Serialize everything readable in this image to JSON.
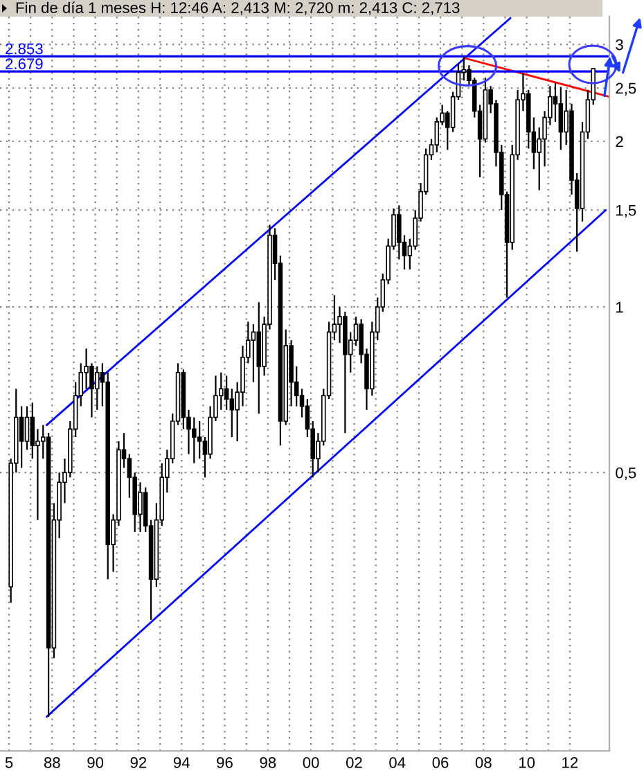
{
  "chart_data": {
    "type": "candlestick",
    "title": "Fin de día 1 meses H: 12:46 A: 2,413 M: 2,720 m: 2,413 C: 2,713",
    "x": [
      "1986-02",
      "1986-05",
      "1986-08",
      "1986-11",
      "1987-02",
      "1987-05",
      "1987-08",
      "1987-11",
      "1988-02",
      "1988-05",
      "1988-08",
      "1988-11",
      "1989-02",
      "1989-05",
      "1989-08",
      "1989-11",
      "1990-02",
      "1990-05",
      "1990-08",
      "1990-11",
      "1991-02",
      "1991-05",
      "1991-08",
      "1991-11",
      "1992-02",
      "1992-05",
      "1992-08",
      "1992-11",
      "1993-02",
      "1993-05",
      "1993-08",
      "1993-11",
      "1994-02",
      "1994-05",
      "1994-08",
      "1994-11",
      "1995-02",
      "1995-05",
      "1995-08",
      "1995-11",
      "1996-02",
      "1996-05",
      "1996-08",
      "1996-11",
      "1997-02",
      "1997-05",
      "1997-08",
      "1997-11",
      "1998-02",
      "1998-05",
      "1998-08",
      "1998-11",
      "1999-02",
      "1999-05",
      "1999-08",
      "1999-11",
      "2000-02",
      "2000-05",
      "2000-08",
      "2000-11",
      "2001-02",
      "2001-05",
      "2001-08",
      "2001-11",
      "2002-02",
      "2002-05",
      "2002-08",
      "2002-11",
      "2003-02",
      "2003-05",
      "2003-08",
      "2003-11",
      "2004-02",
      "2004-05",
      "2004-08",
      "2004-11",
      "2005-02",
      "2005-05",
      "2005-08",
      "2005-11",
      "2006-02",
      "2006-05",
      "2006-08",
      "2006-11",
      "2007-02",
      "2007-05",
      "2007-08",
      "2007-11",
      "2008-02",
      "2008-05",
      "2008-08",
      "2008-11",
      "2009-02",
      "2009-05",
      "2009-08",
      "2009-11",
      "2010-02",
      "2010-05",
      "2010-08",
      "2010-11",
      "2011-02",
      "2011-05",
      "2011-08",
      "2011-11",
      "2012-02",
      "2012-05",
      "2012-08",
      "2012-11",
      "2013-02"
    ],
    "ohlc": [
      [
        0.31,
        0.53,
        0.29,
        0.52
      ],
      [
        0.52,
        0.71,
        0.5,
        0.63
      ],
      [
        0.63,
        0.66,
        0.51,
        0.57
      ],
      [
        0.57,
        0.66,
        0.55,
        0.63
      ],
      [
        0.63,
        0.67,
        0.53,
        0.56
      ],
      [
        0.56,
        0.6,
        0.41,
        0.57
      ],
      [
        0.57,
        0.61,
        0.53,
        0.58
      ],
      [
        0.58,
        0.59,
        0.18,
        0.24
      ],
      [
        0.24,
        0.44,
        0.23,
        0.41
      ],
      [
        0.41,
        0.5,
        0.38,
        0.48
      ],
      [
        0.48,
        0.53,
        0.44,
        0.5
      ],
      [
        0.5,
        0.62,
        0.49,
        0.6
      ],
      [
        0.6,
        0.73,
        0.58,
        0.69
      ],
      [
        0.69,
        0.79,
        0.66,
        0.76
      ],
      [
        0.76,
        0.84,
        0.71,
        0.78
      ],
      [
        0.78,
        0.79,
        0.63,
        0.71
      ],
      [
        0.71,
        0.78,
        0.65,
        0.76
      ],
      [
        0.76,
        0.79,
        0.66,
        0.73
      ],
      [
        0.73,
        0.76,
        0.32,
        0.37
      ],
      [
        0.37,
        0.42,
        0.33,
        0.41
      ],
      [
        0.41,
        0.57,
        0.4,
        0.55
      ],
      [
        0.55,
        0.59,
        0.51,
        0.53
      ],
      [
        0.53,
        0.54,
        0.45,
        0.49
      ],
      [
        0.49,
        0.5,
        0.39,
        0.42
      ],
      [
        0.42,
        0.48,
        0.39,
        0.46
      ],
      [
        0.46,
        0.47,
        0.39,
        0.4
      ],
      [
        0.4,
        0.41,
        0.27,
        0.32
      ],
      [
        0.32,
        0.44,
        0.31,
        0.41
      ],
      [
        0.41,
        0.52,
        0.4,
        0.49
      ],
      [
        0.49,
        0.55,
        0.46,
        0.53
      ],
      [
        0.53,
        0.64,
        0.52,
        0.62
      ],
      [
        0.62,
        0.79,
        0.61,
        0.76
      ],
      [
        0.76,
        0.77,
        0.6,
        0.63
      ],
      [
        0.63,
        0.65,
        0.54,
        0.6
      ],
      [
        0.6,
        0.63,
        0.52,
        0.58
      ],
      [
        0.58,
        0.62,
        0.53,
        0.57
      ],
      [
        0.57,
        0.58,
        0.49,
        0.54
      ],
      [
        0.54,
        0.66,
        0.53,
        0.63
      ],
      [
        0.63,
        0.75,
        0.62,
        0.69
      ],
      [
        0.69,
        0.76,
        0.65,
        0.71
      ],
      [
        0.71,
        0.75,
        0.65,
        0.68
      ],
      [
        0.68,
        0.71,
        0.58,
        0.65
      ],
      [
        0.65,
        0.73,
        0.57,
        0.7
      ],
      [
        0.7,
        0.85,
        0.66,
        0.81
      ],
      [
        0.81,
        0.94,
        0.79,
        0.87
      ],
      [
        0.87,
        0.93,
        0.73,
        0.9
      ],
      [
        0.9,
        1.02,
        0.64,
        0.78
      ],
      [
        0.78,
        0.96,
        0.75,
        0.93
      ],
      [
        0.93,
        1.41,
        0.91,
        1.35
      ],
      [
        1.35,
        1.39,
        1.12,
        1.2
      ],
      [
        1.2,
        1.24,
        0.56,
        0.62
      ],
      [
        0.62,
        0.91,
        0.61,
        0.85
      ],
      [
        0.85,
        0.87,
        0.66,
        0.73
      ],
      [
        0.73,
        0.78,
        0.66,
        0.69
      ],
      [
        0.69,
        0.71,
        0.63,
        0.66
      ],
      [
        0.66,
        0.68,
        0.58,
        0.6
      ],
      [
        0.6,
        0.62,
        0.49,
        0.53
      ],
      [
        0.53,
        0.59,
        0.5,
        0.57
      ],
      [
        0.57,
        0.71,
        0.56,
        0.69
      ],
      [
        0.69,
        0.94,
        0.68,
        0.9
      ],
      [
        0.9,
        1.05,
        0.87,
        0.93
      ],
      [
        0.93,
        1.0,
        0.86,
        0.96
      ],
      [
        0.96,
        0.98,
        0.59,
        0.82
      ],
      [
        0.82,
        0.9,
        0.76,
        0.87
      ],
      [
        0.87,
        0.96,
        0.85,
        0.93
      ],
      [
        0.93,
        0.95,
        0.79,
        0.82
      ],
      [
        0.82,
        0.84,
        0.65,
        0.71
      ],
      [
        0.71,
        0.94,
        0.69,
        0.9
      ],
      [
        0.9,
        1.04,
        0.87,
        1.0
      ],
      [
        1.0,
        1.15,
        0.98,
        1.12
      ],
      [
        1.12,
        1.33,
        1.1,
        1.29
      ],
      [
        1.29,
        1.51,
        1.27,
        1.47
      ],
      [
        1.47,
        1.53,
        1.22,
        1.31
      ],
      [
        1.31,
        1.35,
        1.17,
        1.24
      ],
      [
        1.24,
        1.33,
        1.17,
        1.29
      ],
      [
        1.29,
        1.5,
        1.27,
        1.45
      ],
      [
        1.45,
        1.68,
        1.43,
        1.62
      ],
      [
        1.62,
        1.94,
        1.6,
        1.89
      ],
      [
        1.89,
        2.02,
        1.85,
        1.97
      ],
      [
        1.97,
        2.21,
        1.91,
        2.17
      ],
      [
        2.17,
        2.33,
        2.14,
        2.25
      ],
      [
        2.25,
        2.27,
        1.93,
        2.12
      ],
      [
        2.12,
        2.46,
        2.08,
        2.41
      ],
      [
        2.41,
        2.77,
        2.38,
        2.67
      ],
      [
        2.67,
        2.85,
        2.58,
        2.7
      ],
      [
        2.7,
        2.75,
        2.52,
        2.58
      ],
      [
        2.58,
        2.61,
        2.21,
        2.27
      ],
      [
        2.27,
        2.33,
        1.72,
        2.02
      ],
      [
        2.02,
        2.61,
        1.99,
        2.48
      ],
      [
        2.48,
        2.52,
        2.25,
        2.34
      ],
      [
        2.34,
        2.38,
        1.8,
        1.91
      ],
      [
        1.91,
        1.97,
        1.5,
        1.6
      ],
      [
        1.6,
        1.62,
        1.04,
        1.31
      ],
      [
        1.31,
        1.97,
        1.27,
        1.89
      ],
      [
        1.89,
        2.48,
        1.85,
        2.38
      ],
      [
        2.38,
        2.66,
        2.27,
        2.44
      ],
      [
        2.44,
        2.48,
        1.94,
        2.08
      ],
      [
        2.08,
        2.21,
        1.78,
        1.91
      ],
      [
        1.91,
        2.12,
        1.63,
        2.02
      ],
      [
        2.02,
        2.27,
        1.8,
        2.21
      ],
      [
        2.21,
        2.52,
        2.14,
        2.41
      ],
      [
        2.41,
        2.55,
        2.17,
        2.34
      ],
      [
        2.34,
        2.51,
        1.93,
        2.08
      ],
      [
        2.08,
        2.48,
        1.97,
        2.27
      ],
      [
        2.27,
        2.34,
        1.6,
        1.7
      ],
      [
        1.7,
        1.75,
        1.26,
        1.51
      ],
      [
        1.51,
        2.17,
        1.43,
        2.08
      ],
      [
        2.08,
        2.48,
        2.02,
        2.38
      ],
      [
        2.38,
        2.72,
        2.33,
        2.71
      ]
    ],
    "series": [
      {
        "type": "line",
        "x": [
          "1987-10",
          "2009-04"
        ],
        "values": [
          0.61,
          3.35
        ],
        "color": "#0000ff"
      },
      {
        "type": "line",
        "x": [
          "1987-10",
          "2013-09"
        ],
        "values": [
          0.18,
          1.5
        ],
        "color": "#0000ff"
      },
      {
        "type": "line",
        "x": [
          "2007-03",
          "2013-11"
        ],
        "values": [
          2.83,
          2.41
        ],
        "color": "#ff0000"
      }
    ],
    "ref_lines": [
      {
        "axis": "y",
        "value": 2.853,
        "label": "2.853",
        "color": "#0000ff"
      },
      {
        "axis": "y",
        "value": 2.679,
        "label": "2.679",
        "color": "#0000ff"
      }
    ],
    "log": "y",
    "xlim": [
      "1985-08",
      "2013-11"
    ],
    "ylim": [
      0.156,
      3.37
    ],
    "xticks": [
      {
        "value": "1986-01",
        "label": "5"
      },
      {
        "value": "1987-01",
        "label": null
      },
      {
        "value": "1988-01",
        "label": "88"
      },
      {
        "value": "1989-01",
        "label": null
      },
      {
        "value": "1990-01",
        "label": "90"
      },
      {
        "value": "1991-01",
        "label": null
      },
      {
        "value": "1992-01",
        "label": "92"
      },
      {
        "value": "1993-01",
        "label": null
      },
      {
        "value": "1994-01",
        "label": "94"
      },
      {
        "value": "1995-01",
        "label": null
      },
      {
        "value": "1996-01",
        "label": "96"
      },
      {
        "value": "1997-01",
        "label": null
      },
      {
        "value": "1998-01",
        "label": "98"
      },
      {
        "value": "1999-01",
        "label": null
      },
      {
        "value": "2000-01",
        "label": "00"
      },
      {
        "value": "2001-01",
        "label": null
      },
      {
        "value": "2002-01",
        "label": "02"
      },
      {
        "value": "2003-01",
        "label": null
      },
      {
        "value": "2004-01",
        "label": "04"
      },
      {
        "value": "2005-01",
        "label": null
      },
      {
        "value": "2006-01",
        "label": "06"
      },
      {
        "value": "2007-01",
        "label": null
      },
      {
        "value": "2008-01",
        "label": "08"
      },
      {
        "value": "2009-01",
        "label": null
      },
      {
        "value": "2010-01",
        "label": "10"
      },
      {
        "value": "2011-01",
        "label": null
      },
      {
        "value": "2012-01",
        "label": "12"
      }
    ],
    "yticks": [
      {
        "value": 0.5,
        "label": "0,5"
      },
      1,
      {
        "value": 1.5,
        "label": "1,5"
      },
      2,
      {
        "value": 2.5,
        "label": "2,5"
      },
      3
    ],
    "grid": true
  }
}
